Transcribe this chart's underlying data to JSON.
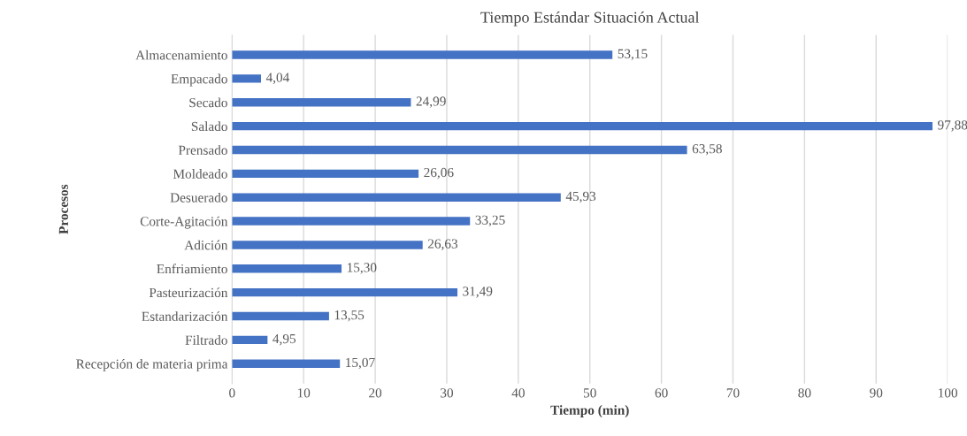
{
  "chart_data": {
    "type": "bar",
    "orientation": "horizontal",
    "title": "Tiempo Estándar Situación Actual",
    "xlabel": "Tiempo (min)",
    "ylabel": "Procesos",
    "categories": [
      "Almacenamiento",
      "Empacado",
      "Secado",
      "Salado",
      "Prensado",
      "Moldeado",
      "Desuerado",
      "Corte-Agitación",
      "Adición",
      "Enfriamiento",
      "Pasteurización",
      "Estandarización",
      "Filtrado",
      "Recepción de materia prima"
    ],
    "values": [
      53.15,
      4.04,
      24.99,
      97.88,
      63.58,
      26.06,
      45.93,
      33.25,
      26.63,
      15.3,
      31.49,
      13.55,
      4.95,
      15.07
    ],
    "value_labels": [
      "53,15",
      "4,04",
      "24,99",
      "97,88",
      "63,58",
      "26,06",
      "45,93",
      "33,25",
      "26,63",
      "15,30",
      "31,49",
      "13,55",
      "4,95",
      "15,07"
    ],
    "color": "#4472c4",
    "xlim": [
      0,
      100
    ],
    "xticks": [
      0,
      10,
      20,
      30,
      40,
      50,
      60,
      70,
      80,
      90,
      100
    ],
    "grid": "x",
    "legend": false
  }
}
